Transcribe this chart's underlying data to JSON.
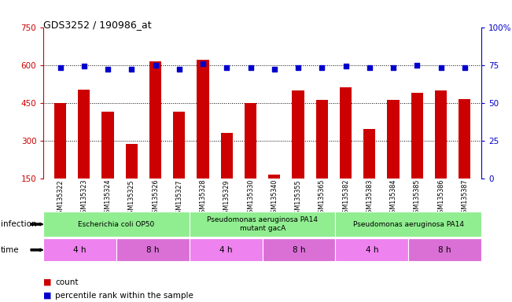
{
  "title": "GDS3252 / 190986_at",
  "samples": [
    "GSM135322",
    "GSM135323",
    "GSM135324",
    "GSM135325",
    "GSM135326",
    "GSM135327",
    "GSM135328",
    "GSM135329",
    "GSM135330",
    "GSM135340",
    "GSM135355",
    "GSM135365",
    "GSM135382",
    "GSM135383",
    "GSM135384",
    "GSM135385",
    "GSM135386",
    "GSM135387"
  ],
  "counts": [
    450,
    502,
    415,
    285,
    615,
    415,
    620,
    330,
    450,
    165,
    500,
    460,
    510,
    345,
    460,
    490,
    500,
    465
  ],
  "percentile_ranks": [
    73,
    74,
    72,
    72,
    75,
    72,
    76,
    73,
    73,
    72,
    73,
    73,
    74,
    73,
    73,
    75,
    73,
    73
  ],
  "infection_groups": [
    {
      "label": "Escherichia coli OP50",
      "start": 0,
      "end": 6
    },
    {
      "label": "Pseudomonas aeruginosa PA14\nmutant gacA",
      "start": 6,
      "end": 12
    },
    {
      "label": "Pseudomonas aeruginosa PA14",
      "start": 12,
      "end": 18
    }
  ],
  "time_groups": [
    {
      "label": "4 h",
      "start": 0,
      "end": 3
    },
    {
      "label": "8 h",
      "start": 3,
      "end": 6
    },
    {
      "label": "4 h",
      "start": 6,
      "end": 9
    },
    {
      "label": "8 h",
      "start": 9,
      "end": 12
    },
    {
      "label": "4 h",
      "start": 12,
      "end": 15
    },
    {
      "label": "8 h",
      "start": 15,
      "end": 18
    }
  ],
  "bar_color": "#CC0000",
  "dot_color": "#0000CC",
  "inf_color": "#90EE90",
  "time_color_light": "#EE82EE",
  "time_color_dark": "#DA70D6",
  "ylim_left": [
    150,
    750
  ],
  "ylim_right": [
    0,
    100
  ],
  "yticks_left": [
    150,
    300,
    450,
    600,
    750
  ],
  "yticks_right": [
    0,
    25,
    50,
    75,
    100
  ],
  "grid_lines": [
    300,
    450,
    600
  ],
  "label_infection": "infection",
  "label_time": "time",
  "legend_count": "count",
  "legend_pct": "percentile rank within the sample"
}
